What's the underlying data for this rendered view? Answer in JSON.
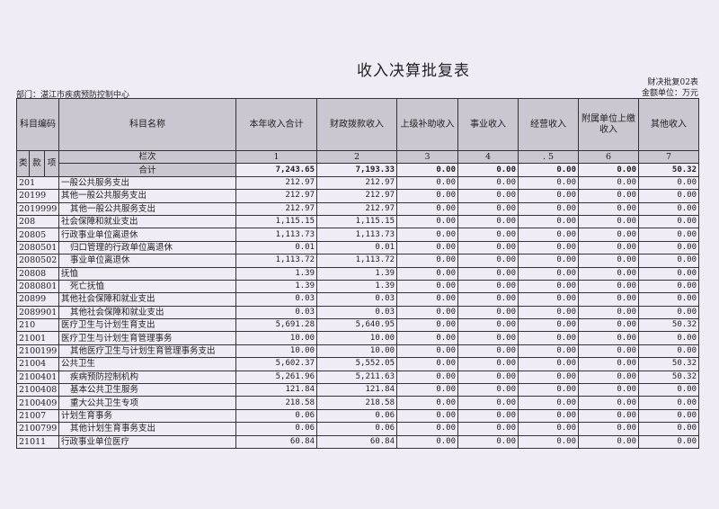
{
  "title": "收入决算批复表",
  "form_no": "财决批复02表",
  "unit": "金额单位：万元",
  "department": "部门：湛江市疾病预防控制中心",
  "headers": {
    "code": "科目编码",
    "name": "科目名称",
    "cols": [
      "本年收入合计",
      "财政拨款收入",
      "上级补助收入",
      "事业收入",
      "经营收入",
      "附属单位上缴收入",
      "其他收入"
    ],
    "lei": "类",
    "kuan": "款",
    "xiang": "项",
    "lanci": "栏次",
    "lanci_nums": [
      "1",
      "2",
      "3",
      "4",
      ". 5",
      "6",
      "7"
    ],
    "total_label": "合计"
  },
  "total": [
    "7,243.65",
    "7,193.33",
    "0.00",
    "0.00",
    "0.00",
    "0.00",
    "50.32"
  ],
  "rows": [
    {
      "code": "201",
      "name": "一般公共服务支出",
      "level": 1,
      "v": [
        "212.97",
        "212.97",
        "0.00",
        "0.00",
        "0.00",
        "0.00",
        "0.00"
      ]
    },
    {
      "code": "20199",
      "name": "其他一般公共服务支出",
      "level": 2,
      "v": [
        "212.97",
        "212.97",
        "0.00",
        "0.00",
        "0.00",
        "0.00",
        "0.00"
      ]
    },
    {
      "code": "2019999",
      "name": "其他一般公共服务支出",
      "level": 3,
      "v": [
        "212.97",
        "212.97",
        "0.00",
        "0.00",
        "0.00",
        "0.00",
        "0.00"
      ]
    },
    {
      "code": "208",
      "name": "社会保障和就业支出",
      "level": 1,
      "v": [
        "1,115.15",
        "1,115.15",
        "0.00",
        "0.00",
        "0.00",
        "0.00",
        "0.00"
      ]
    },
    {
      "code": "20805",
      "name": "行政事业单位离退休",
      "level": 2,
      "v": [
        "1,113.73",
        "1,113.73",
        "0.00",
        "0.00",
        "0.00",
        "0.00",
        "0.00"
      ]
    },
    {
      "code": "2080501",
      "name": "归口管理的行政单位离退休",
      "level": 3,
      "v": [
        "0.01",
        "0.01",
        "0.00",
        "0.00",
        "0.00",
        "0.00",
        "0.00"
      ]
    },
    {
      "code": "2080502",
      "name": "事业单位离退休",
      "level": 3,
      "v": [
        "1,113.72",
        "1,113.72",
        "0.00",
        "0.00",
        "0.00",
        "0.00",
        "0.00"
      ]
    },
    {
      "code": "20808",
      "name": "抚恤",
      "level": 2,
      "v": [
        "1.39",
        "1.39",
        "0.00",
        "0.00",
        "0.00",
        "0.00",
        "0.00"
      ]
    },
    {
      "code": "2080801",
      "name": "死亡抚恤",
      "level": 3,
      "v": [
        "1.39",
        "1.39",
        "0.00",
        "0.00",
        "0.00",
        "0.00",
        "0.00"
      ]
    },
    {
      "code": "20899",
      "name": "其他社会保障和就业支出",
      "level": 2,
      "v": [
        "0.03",
        "0.03",
        "0.00",
        "0.00",
        "0.00",
        "0.00",
        "0.00"
      ]
    },
    {
      "code": "2089901",
      "name": "其他社会保障和就业支出",
      "level": 3,
      "v": [
        "0.03",
        "0.03",
        "0.00",
        "0.00",
        "0.00",
        "0.00",
        "0.00"
      ]
    },
    {
      "code": "210",
      "name": "医疗卫生与计划生育支出",
      "level": 1,
      "v": [
        "5,691.28",
        "5,640.95",
        "0.00",
        "0.00",
        "0.00",
        "0.00",
        "50.32"
      ]
    },
    {
      "code": "21001",
      "name": "医疗卫生与计划生育管理事务",
      "level": 2,
      "v": [
        "10.00",
        "10.00",
        "0.00",
        "0.00",
        "0.00",
        "0.00",
        "0.00"
      ]
    },
    {
      "code": "2100199",
      "name": "其他医疗卫生与计划生育管理事务支出",
      "level": 3,
      "v": [
        "10.00",
        "10.00",
        "0.00",
        "0.00",
        "0.00",
        "0.00",
        "0.00"
      ]
    },
    {
      "code": "21004",
      "name": "公共卫生",
      "level": 2,
      "v": [
        "5,602.37",
        "5,552.05",
        "0.00",
        "0.00",
        "0.00",
        "0.00",
        "50.32"
      ]
    },
    {
      "code": "2100401",
      "name": "疾病预防控制机构",
      "level": 3,
      "v": [
        "5,261.96",
        "5,211.63",
        "0.00",
        "0.00",
        "0.00",
        "0.00",
        "50.32"
      ]
    },
    {
      "code": "2100408",
      "name": "基本公共卫生服务",
      "level": 3,
      "v": [
        "121.84",
        "121.84",
        "0.00",
        "0.00",
        "0.00",
        "0.00",
        "0.00"
      ]
    },
    {
      "code": "2100409",
      "name": "重大公共卫生专项",
      "level": 3,
      "v": [
        "218.58",
        "218.58",
        "0.00",
        "0.00",
        "0.00",
        "0.00",
        "0.00"
      ]
    },
    {
      "code": "21007",
      "name": "计划生育事务",
      "level": 2,
      "v": [
        "0.06",
        "0.06",
        "0.00",
        "0.00",
        "0.00",
        "0.00",
        "0.00"
      ]
    },
    {
      "code": "2100799",
      "name": "其他计划生育事务支出",
      "level": 3,
      "v": [
        "0.06",
        "0.06",
        "0.00",
        "0.00",
        "0.00",
        "0.00",
        "0.00"
      ]
    },
    {
      "code": "21011",
      "name": "行政事业单位医疗",
      "level": 2,
      "v": [
        "60.84",
        "60.84",
        "0.00",
        "0.00",
        "0.00",
        "0.00",
        "0.00"
      ]
    }
  ]
}
